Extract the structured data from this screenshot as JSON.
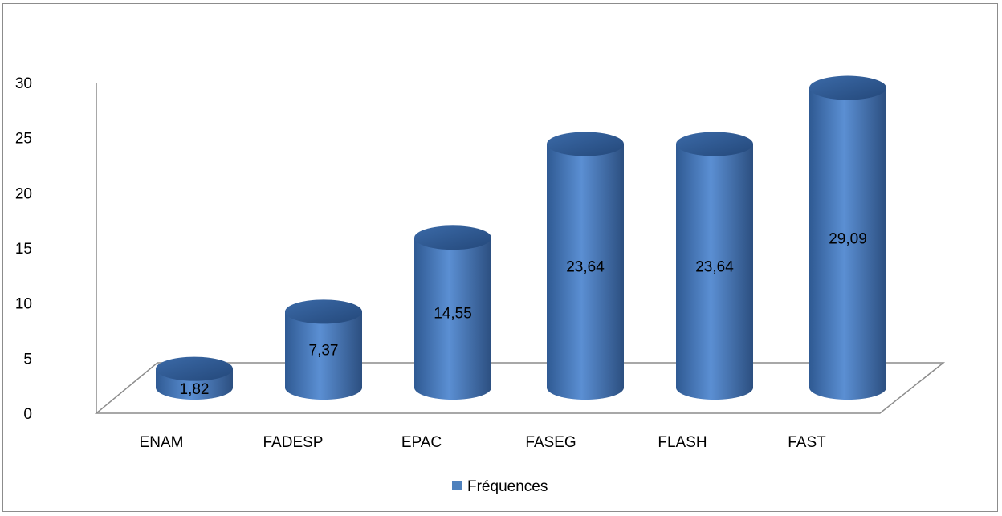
{
  "chart_data": {
    "type": "bar",
    "categories": [
      "ENAM",
      "FADESP",
      "EPAC",
      "FASEG",
      "FLASH",
      "FAST"
    ],
    "series": [
      {
        "name": "Fréquences",
        "values": [
          1.82,
          7.37,
          14.55,
          23.64,
          23.64,
          29.09
        ],
        "labels": [
          "1,82",
          "7,37",
          "14,55",
          "23,64",
          "23,64",
          "29,09"
        ],
        "color": "#4f81bd"
      }
    ],
    "ylim": [
      0,
      30
    ],
    "yticks": [
      0,
      5,
      10,
      15,
      20,
      25,
      30
    ],
    "legend": "bottom",
    "style": "3d-cylinder",
    "grid": false
  }
}
